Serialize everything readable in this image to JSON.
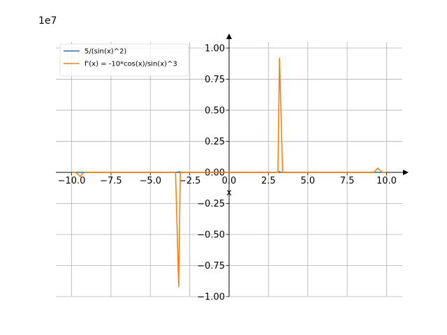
{
  "chart_data": {
    "type": "line",
    "scale_label": "1e7",
    "xlabel": "x",
    "xlim": [
      -11,
      11
    ],
    "ylim": [
      -1.0,
      1.05
    ],
    "xticks": [
      -10,
      -7.5,
      -5,
      -2.5,
      0,
      2.5,
      5,
      7.5,
      10
    ],
    "xtick_labels": [
      "−10.0",
      "−7.5",
      "−5.0",
      "−2.5",
      "0.0",
      "2.5",
      "5.0",
      "7.5",
      "10.0"
    ],
    "yticks": [
      1.0,
      0.75,
      0.5,
      0.25,
      0.0,
      -0.25,
      -0.5,
      -0.75,
      -1.0
    ],
    "ytick_labels": [
      "1.00",
      "0.75",
      "0.50",
      "0.25",
      "0.00",
      "−0.25",
      "−0.50",
      "−0.75",
      "−1.00"
    ],
    "grid": true,
    "legend_position": "top-left",
    "series": [
      {
        "name": "5/(sin(x)^2)",
        "color": "#1f77b4",
        "points": [
          [
            -10,
            0.0
          ],
          [
            -9.6,
            0.0
          ],
          [
            -9.45,
            0.0
          ],
          [
            -9.3,
            0.0
          ],
          [
            -7.5,
            0.0
          ],
          [
            -5.0,
            0.0
          ],
          [
            -3.3,
            0.0
          ],
          [
            -3.15,
            0.005
          ],
          [
            -3.05,
            0.0
          ],
          [
            -2.5,
            0.0
          ],
          [
            0.0,
            0.0
          ],
          [
            2.5,
            0.0
          ],
          [
            3.05,
            0.0
          ],
          [
            3.2,
            0.005
          ],
          [
            3.3,
            0.0
          ],
          [
            5.0,
            0.0
          ],
          [
            7.5,
            0.0
          ],
          [
            9.3,
            0.0
          ],
          [
            9.45,
            0.0
          ],
          [
            9.6,
            0.0
          ],
          [
            10,
            0.0
          ]
        ]
      },
      {
        "name": "f'(x) = -10*cos(x)/sin(x)^3",
        "color": "#ff7f0e",
        "points": [
          [
            -10,
            0.0
          ],
          [
            -9.75,
            0.0
          ],
          [
            -9.55,
            -0.02
          ],
          [
            -9.45,
            -0.035
          ],
          [
            -9.35,
            -0.015
          ],
          [
            -9.2,
            0.0
          ],
          [
            -7.5,
            0.0
          ],
          [
            -5.0,
            0.0
          ],
          [
            -3.4,
            0.0
          ],
          [
            -3.2,
            -0.92
          ],
          [
            -3.1,
            0.0
          ],
          [
            -2.9,
            0.0
          ],
          [
            0.0,
            0.0
          ],
          [
            2.9,
            0.0
          ],
          [
            3.1,
            0.0
          ],
          [
            3.2,
            0.92
          ],
          [
            3.4,
            0.0
          ],
          [
            5.0,
            0.0
          ],
          [
            7.5,
            0.0
          ],
          [
            9.2,
            0.0
          ],
          [
            9.3,
            0.015
          ],
          [
            9.45,
            0.035
          ],
          [
            9.55,
            0.02
          ],
          [
            9.75,
            0.0
          ],
          [
            10,
            0.0
          ]
        ]
      }
    ]
  }
}
